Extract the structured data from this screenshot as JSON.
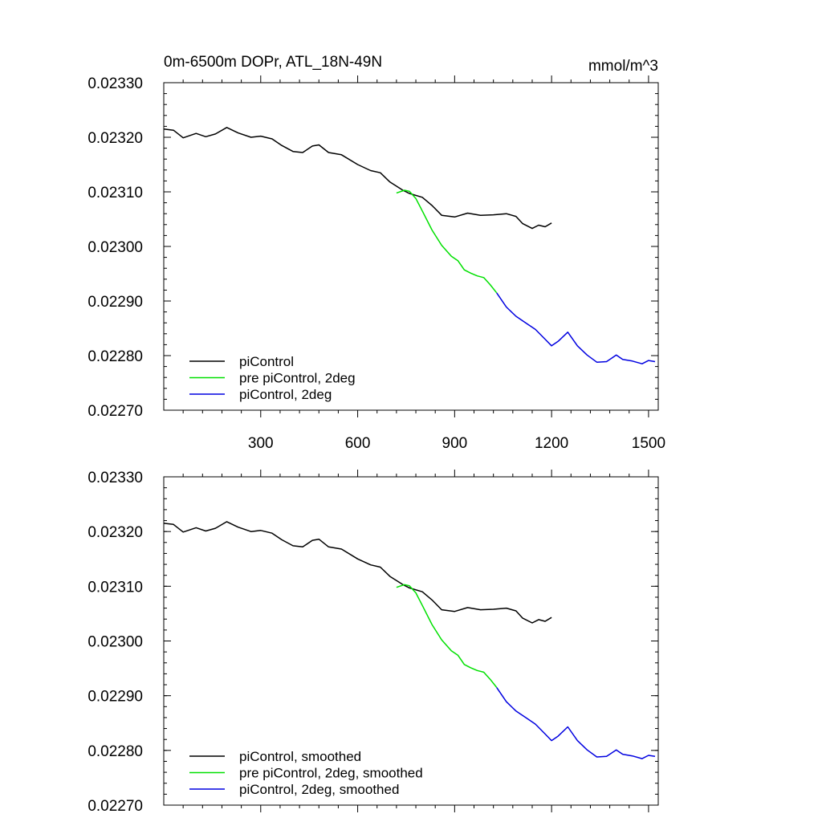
{
  "chart_data": [
    {
      "type": "line",
      "title": "0m-6500m DOPr, ATL_18N-49N",
      "units": "mmol/m^3",
      "xlim": [
        0,
        1530
      ],
      "ylim": [
        0.0227,
        0.0233
      ],
      "x_ticks": [
        "300",
        "600",
        "900",
        "1200",
        "1500"
      ],
      "y_ticks": [
        "0.02270",
        "0.02280",
        "0.02290",
        "0.02300",
        "0.02310",
        "0.02320",
        "0.02330"
      ],
      "legend": "bottom-left",
      "grid": false,
      "series": [
        {
          "name": "piControl",
          "color": "#000000",
          "x": [
            0,
            30,
            60,
            100,
            130,
            160,
            195,
            230,
            270,
            300,
            335,
            365,
            400,
            430,
            460,
            480,
            510,
            550,
            600,
            640,
            670,
            700,
            740,
            760,
            800,
            830,
            860,
            900,
            940,
            980,
            1020,
            1060,
            1090,
            1110,
            1140,
            1160,
            1180,
            1200
          ],
          "y": [
            0.023215,
            0.023213,
            0.023199,
            0.023207,
            0.023201,
            0.023206,
            0.023218,
            0.023208,
            0.0232,
            0.023202,
            0.023197,
            0.023185,
            0.023174,
            0.023172,
            0.023184,
            0.023186,
            0.023172,
            0.023168,
            0.02315,
            0.023139,
            0.023135,
            0.023118,
            0.023103,
            0.023097,
            0.02309,
            0.023075,
            0.023057,
            0.023054,
            0.023061,
            0.023057,
            0.023058,
            0.02306,
            0.023055,
            0.023042,
            0.023033,
            0.023039,
            0.023036,
            0.023043
          ]
        },
        {
          "name": "pre piControl, 2deg",
          "color": "#00e000",
          "x": [
            720,
            745,
            760,
            780,
            800,
            830,
            860,
            890,
            910,
            930,
            950,
            970,
            990,
            1010,
            1030
          ],
          "y": [
            0.023098,
            0.023103,
            0.023101,
            0.023088,
            0.023065,
            0.02303,
            0.023002,
            0.022982,
            0.022974,
            0.022957,
            0.022951,
            0.022946,
            0.022943,
            0.02293,
            0.022915
          ]
        },
        {
          "name": "piControl, 2deg",
          "color": "#0000e0",
          "x": [
            1030,
            1060,
            1090,
            1120,
            1150,
            1180,
            1200,
            1220,
            1250,
            1280,
            1310,
            1340,
            1370,
            1400,
            1420,
            1450,
            1480,
            1500,
            1520
          ],
          "y": [
            0.022915,
            0.022889,
            0.022872,
            0.02286,
            0.022848,
            0.02283,
            0.022818,
            0.022826,
            0.022843,
            0.022818,
            0.022801,
            0.022788,
            0.022789,
            0.022801,
            0.022793,
            0.02279,
            0.022785,
            0.022791,
            0.022789
          ]
        }
      ]
    },
    {
      "type": "line",
      "xlim": [
        0,
        1530
      ],
      "ylim": [
        0.0227,
        0.0233
      ],
      "y_ticks": [
        "0.02270",
        "0.02280",
        "0.02290",
        "0.02300",
        "0.02310",
        "0.02320",
        "0.02330"
      ],
      "legend": "bottom-left",
      "grid": false,
      "series": [
        {
          "name": "piControl, smoothed",
          "color": "#000000",
          "x": [
            0,
            30,
            60,
            100,
            130,
            160,
            195,
            230,
            270,
            300,
            335,
            365,
            400,
            430,
            460,
            480,
            510,
            550,
            600,
            640,
            670,
            700,
            740,
            760,
            800,
            830,
            860,
            900,
            940,
            980,
            1020,
            1060,
            1090,
            1110,
            1140,
            1160,
            1180,
            1200
          ],
          "y": [
            0.023215,
            0.023213,
            0.023199,
            0.023207,
            0.023201,
            0.023206,
            0.023218,
            0.023208,
            0.0232,
            0.023202,
            0.023197,
            0.023185,
            0.023174,
            0.023172,
            0.023184,
            0.023186,
            0.023172,
            0.023168,
            0.02315,
            0.023139,
            0.023135,
            0.023118,
            0.023103,
            0.023097,
            0.02309,
            0.023075,
            0.023057,
            0.023054,
            0.023061,
            0.023057,
            0.023058,
            0.02306,
            0.023055,
            0.023042,
            0.023033,
            0.023039,
            0.023036,
            0.023043
          ]
        },
        {
          "name": "pre piControl, 2deg, smoothed",
          "color": "#00e000",
          "x": [
            720,
            745,
            760,
            780,
            800,
            830,
            860,
            890,
            910,
            930,
            950,
            970,
            990,
            1010,
            1030
          ],
          "y": [
            0.023098,
            0.023103,
            0.023101,
            0.023088,
            0.023065,
            0.02303,
            0.023002,
            0.022982,
            0.022974,
            0.022957,
            0.022951,
            0.022946,
            0.022943,
            0.02293,
            0.022915
          ]
        },
        {
          "name": "piControl, 2deg, smoothed",
          "color": "#0000e0",
          "x": [
            1030,
            1060,
            1090,
            1120,
            1150,
            1180,
            1200,
            1220,
            1250,
            1280,
            1310,
            1340,
            1370,
            1400,
            1420,
            1450,
            1480,
            1500,
            1520
          ],
          "y": [
            0.022915,
            0.022889,
            0.022872,
            0.02286,
            0.022848,
            0.02283,
            0.022818,
            0.022826,
            0.022843,
            0.022818,
            0.022801,
            0.022788,
            0.022789,
            0.022801,
            0.022793,
            0.02279,
            0.022785,
            0.022791,
            0.022789
          ]
        }
      ]
    }
  ]
}
